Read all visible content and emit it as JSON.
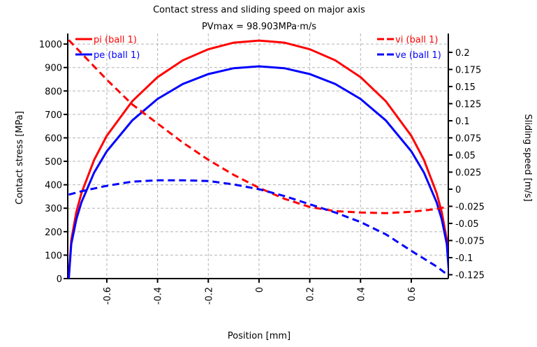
{
  "chart_data": {
    "type": "line",
    "title": "Contact stress and sliding speed on major axis",
    "subtitle": "PVmax = 98.903MPa·m/s",
    "xlabel": "Position [mm]",
    "ylabel": "Contact stress [MPa]",
    "y2label": "Sliding speed [m/s]",
    "xlim": [
      -0.754,
      0.746
    ],
    "ylim": [
      0,
      1045
    ],
    "y2lim": [
      -0.1306,
      0.2275
    ],
    "xticks": [
      "-0.6",
      "-0.4",
      "-0.2",
      "0",
      "0.2",
      "0.4",
      "0.6"
    ],
    "xtick_values": [
      -0.6,
      -0.4,
      -0.2,
      0,
      0.2,
      0.4,
      0.6
    ],
    "yticks": [
      "0",
      "100",
      "200",
      "300",
      "400",
      "500",
      "600",
      "700",
      "800",
      "900",
      "1000"
    ],
    "ytick_values": [
      0,
      100,
      200,
      300,
      400,
      500,
      600,
      700,
      800,
      900,
      1000
    ],
    "y2ticks": [
      "-0.125",
      "-0.1",
      "-0.075",
      "-0.05",
      "-0.025",
      "0",
      "0.025",
      "0.05",
      "0.075",
      "0.1",
      "0.125",
      "0.15",
      "0.175",
      "0.2"
    ],
    "y2tick_values": [
      -0.125,
      -0.1,
      -0.075,
      -0.05,
      -0.025,
      0,
      0.025,
      0.05,
      0.075,
      0.1,
      0.125,
      0.15,
      0.175,
      0.2
    ],
    "grid": true,
    "series": [
      {
        "name": "pi (ball 1)",
        "axis": "left",
        "color": "#ff0000",
        "dash": false,
        "legend": "top-left",
        "x": [
          -0.75,
          -0.74,
          -0.72,
          -0.7,
          -0.65,
          -0.6,
          -0.5,
          -0.4,
          -0.3,
          -0.2,
          -0.1,
          0,
          0.1,
          0.2,
          0.3,
          0.4,
          0.5,
          0.6,
          0.65,
          0.7,
          0.72,
          0.74,
          0.75
        ],
        "y": [
          0,
          165,
          284,
          364,
          506,
          609,
          756,
          859,
          931,
          978,
          1006,
          1015,
          1006,
          978,
          931,
          859,
          756,
          609,
          506,
          364,
          284,
          165,
          0
        ]
      },
      {
        "name": "pe (ball 1)",
        "axis": "left",
        "color": "#0000ff",
        "dash": false,
        "legend": "top-left",
        "x": [
          -0.75,
          -0.74,
          -0.72,
          -0.7,
          -0.65,
          -0.6,
          -0.5,
          -0.4,
          -0.3,
          -0.2,
          -0.1,
          0,
          0.1,
          0.2,
          0.3,
          0.4,
          0.5,
          0.6,
          0.65,
          0.7,
          0.72,
          0.74,
          0.75
        ],
        "y": [
          0,
          148,
          253,
          325,
          452,
          543,
          674,
          766,
          830,
          872,
          897,
          905,
          897,
          872,
          830,
          766,
          674,
          543,
          452,
          325,
          253,
          148,
          0
        ]
      },
      {
        "name": "vi (ball 1)",
        "axis": "right",
        "color": "#ff0000",
        "dash": true,
        "legend": "top-right",
        "x": [
          -0.75,
          -0.6,
          -0.5,
          -0.4,
          -0.3,
          -0.2,
          -0.1,
          0,
          0.1,
          0.2,
          0.3,
          0.4,
          0.5,
          0.6,
          0.7,
          0.75
        ],
        "y": [
          0.218,
          0.16,
          0.124,
          0.096,
          0.068,
          0.043,
          0.021,
          0.002,
          -0.014,
          -0.026,
          -0.032,
          -0.034,
          -0.035,
          -0.033,
          -0.029,
          -0.025
        ]
      },
      {
        "name": "ve (ball 1)",
        "axis": "right",
        "color": "#0000ff",
        "dash": true,
        "legend": "top-right",
        "x": [
          -0.75,
          -0.7,
          -0.6,
          -0.5,
          -0.4,
          -0.3,
          -0.2,
          -0.1,
          0,
          0.1,
          0.2,
          0.3,
          0.4,
          0.5,
          0.6,
          0.7,
          0.75
        ],
        "y": [
          -0.008,
          -0.003,
          0.005,
          0.011,
          0.013,
          0.013,
          0.012,
          0.007,
          0,
          -0.01,
          -0.022,
          -0.034,
          -0.048,
          -0.066,
          -0.09,
          -0.113,
          -0.127
        ]
      }
    ]
  }
}
